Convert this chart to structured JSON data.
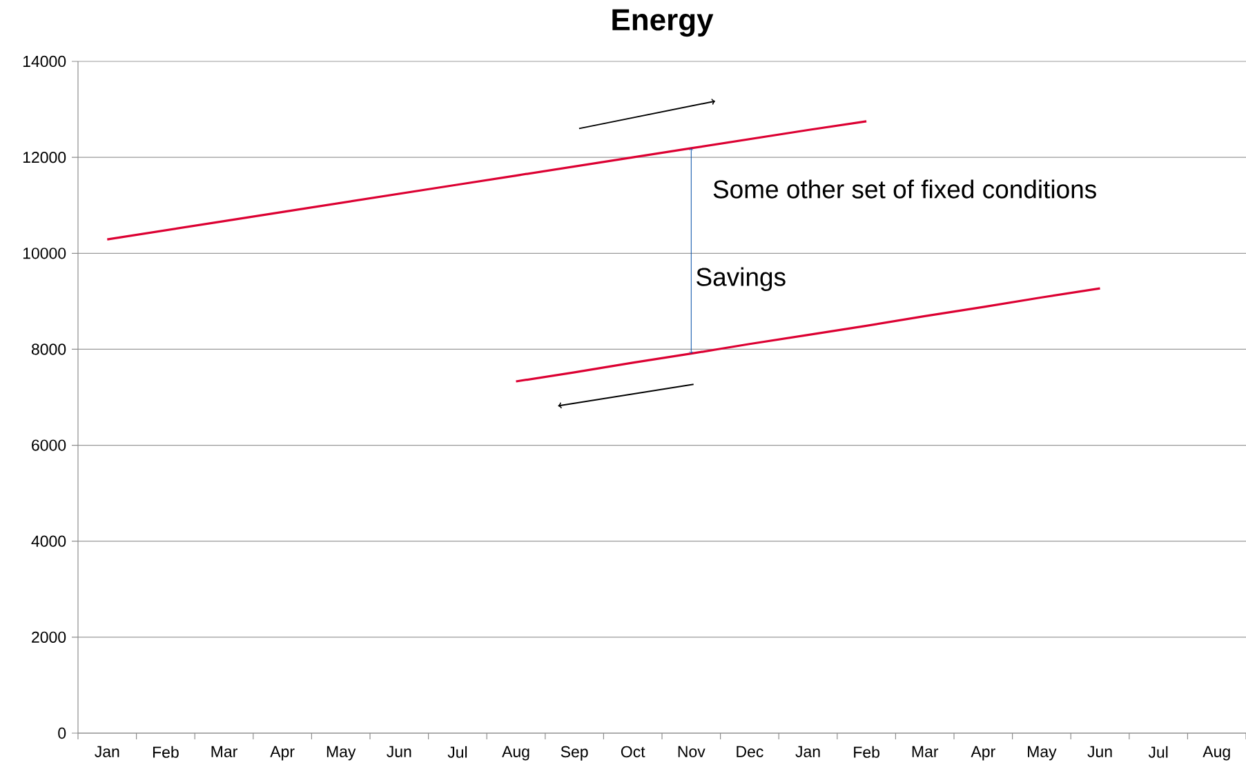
{
  "chart_data": {
    "type": "line",
    "title": "Energy",
    "categories": [
      "Jan",
      "Feb",
      "Mar",
      "Apr",
      "May",
      "Jun",
      "Jul",
      "Aug",
      "Sep",
      "Oct",
      "Nov",
      "Dec",
      "Jan",
      "Feb",
      "Mar",
      "Apr",
      "May",
      "Jun",
      "Jul",
      "Aug"
    ],
    "series": [
      {
        "color": "#dc0032",
        "values": [
          10290,
          10480,
          10670,
          10860,
          11050,
          11240,
          11430,
          11620,
          11810,
          12000,
          12190,
          12380,
          12570,
          12750,
          null,
          null,
          null,
          null,
          null,
          null
        ]
      },
      {
        "color": "#dc0032",
        "values": [
          null,
          null,
          null,
          null,
          null,
          null,
          null,
          7330,
          7520,
          7720,
          7910,
          8110,
          8300,
          8490,
          8690,
          8880,
          9080,
          9270,
          null,
          null
        ]
      }
    ],
    "ylim": [
      0,
      14000
    ],
    "yticks": [
      0,
      2000,
      4000,
      6000,
      8000,
      10000,
      12000,
      14000
    ],
    "grid": "y",
    "marker": "none",
    "line_style": "solid",
    "annotations": [
      "Some other set of fixed conditions",
      "Savings"
    ]
  }
}
